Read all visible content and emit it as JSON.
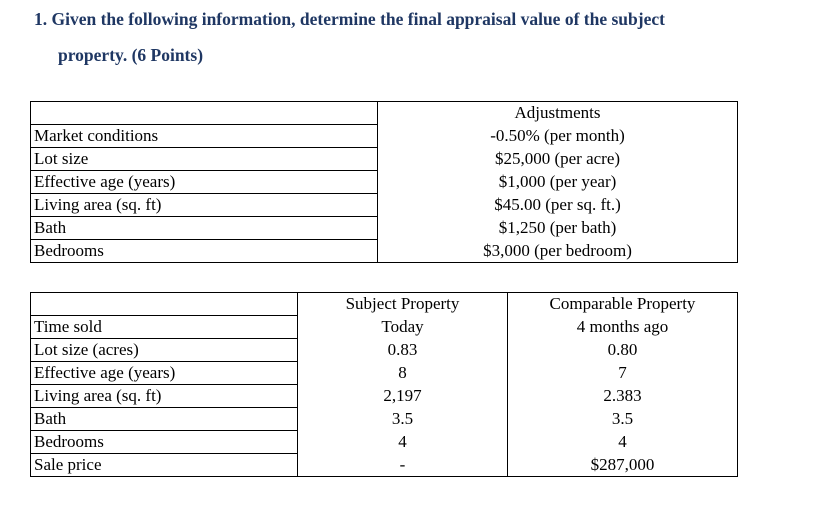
{
  "question": {
    "line1": "1.  Given the following information, determine the final appraisal value of the subject",
    "line2": "property. (6 Points)"
  },
  "adjustments_table": {
    "header": "Adjustments",
    "rows": [
      {
        "label": "Market conditions",
        "value": "-0.50% (per month)"
      },
      {
        "label": "Lot size",
        "value": "$25,000 (per acre)"
      },
      {
        "label": "Effective age (years)",
        "value": "$1,000 (per year)"
      },
      {
        "label": "Living area (sq. ft)",
        "value": "$45.00 (per sq. ft.)"
      },
      {
        "label": "Bath",
        "value": "$1,250 (per bath)"
      },
      {
        "label": "Bedrooms",
        "value": "$3,000 (per bedroom)"
      }
    ]
  },
  "comparison_table": {
    "subject_header": "Subject Property",
    "comparable_header": "Comparable Property",
    "rows": [
      {
        "label": "Time sold",
        "subject": "Today",
        "comparable": "4 months ago"
      },
      {
        "label": "Lot size (acres)",
        "subject": "0.83",
        "comparable": "0.80"
      },
      {
        "label": "Effective age (years)",
        "subject": "8",
        "comparable": "7"
      },
      {
        "label": "Living area (sq. ft)",
        "subject": "2,197",
        "comparable": "2.383"
      },
      {
        "label": "Bath",
        "subject": "3.5",
        "comparable": "3.5"
      },
      {
        "label": "Bedrooms",
        "subject": "4",
        "comparable": "4"
      },
      {
        "label": "Sale price",
        "subject": "-",
        "comparable": "$287,000"
      }
    ]
  }
}
